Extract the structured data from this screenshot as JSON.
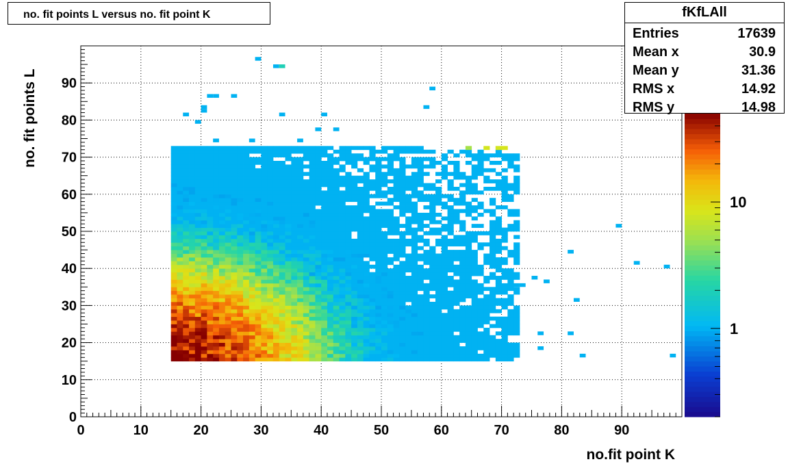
{
  "title": "no. fit points L versus no. fit point K",
  "stats": {
    "name": "fKfLAll",
    "rows": [
      {
        "label": "Entries",
        "value": "17639"
      },
      {
        "label": "Mean x",
        "value": "30.9"
      },
      {
        "label": "Mean y",
        "value": "31.36"
      },
      {
        "label": "RMS x",
        "value": "14.92"
      },
      {
        "label": "RMS y",
        "value": "14.98"
      }
    ]
  },
  "chart_data": {
    "type": "heatmap",
    "title": "no. fit points L versus no. fit point K",
    "xlabel": "no.fit point K",
    "ylabel": "no. fit points  L",
    "xlim": [
      0,
      100
    ],
    "ylim": [
      0,
      100
    ],
    "x_ticks": [
      "0",
      "10",
      "20",
      "30",
      "40",
      "50",
      "60",
      "70",
      "80",
      "90"
    ],
    "y_ticks": [
      "0",
      "10",
      "20",
      "30",
      "40",
      "50",
      "60",
      "70",
      "80",
      "90"
    ],
    "grid": true,
    "z_scale": "log",
    "z_ticks": [
      "1",
      "10"
    ],
    "z_range": [
      0.2,
      50
    ],
    "bin_size": 1,
    "main_region": {
      "x_range": [
        15,
        73
      ],
      "y_range": [
        15,
        73
      ]
    },
    "z_estimate": "peak near (K=16, L=16), decreasing with K and L",
    "outlier_bins": [
      {
        "x": 29,
        "y": 96,
        "z": 1
      },
      {
        "x": 32,
        "y": 94,
        "z": 1
      },
      {
        "x": 33,
        "y": 94,
        "z": 2
      },
      {
        "x": 58,
        "y": 88,
        "z": 1
      },
      {
        "x": 21,
        "y": 86,
        "z": 1
      },
      {
        "x": 22,
        "y": 86,
        "z": 1
      },
      {
        "x": 25,
        "y": 86,
        "z": 1
      },
      {
        "x": 20,
        "y": 83,
        "z": 1
      },
      {
        "x": 57,
        "y": 83,
        "z": 1
      },
      {
        "x": 17,
        "y": 81,
        "z": 1
      },
      {
        "x": 20,
        "y": 82,
        "z": 1
      },
      {
        "x": 33,
        "y": 81,
        "z": 1
      },
      {
        "x": 40,
        "y": 81,
        "z": 1
      },
      {
        "x": 19,
        "y": 79,
        "z": 1
      },
      {
        "x": 39,
        "y": 77,
        "z": 1
      },
      {
        "x": 42,
        "y": 77,
        "z": 1
      },
      {
        "x": 22,
        "y": 74,
        "z": 1
      },
      {
        "x": 28,
        "y": 74,
        "z": 1
      },
      {
        "x": 36,
        "y": 74,
        "z": 1
      },
      {
        "x": 89,
        "y": 51,
        "z": 1
      },
      {
        "x": 81,
        "y": 44,
        "z": 1
      },
      {
        "x": 92,
        "y": 41,
        "z": 1
      },
      {
        "x": 97,
        "y": 40,
        "z": 1
      },
      {
        "x": 75,
        "y": 37,
        "z": 1
      },
      {
        "x": 77,
        "y": 36,
        "z": 1
      },
      {
        "x": 82,
        "y": 31,
        "z": 1
      },
      {
        "x": 76,
        "y": 22,
        "z": 1
      },
      {
        "x": 81,
        "y": 22,
        "z": 1
      },
      {
        "x": 76,
        "y": 18,
        "z": 1
      },
      {
        "x": 83,
        "y": 16,
        "z": 1
      },
      {
        "x": 98,
        "y": 16,
        "z": 1
      },
      {
        "x": 72,
        "y": 35,
        "z": 1
      },
      {
        "x": 73,
        "y": 35,
        "z": 1
      }
    ]
  }
}
